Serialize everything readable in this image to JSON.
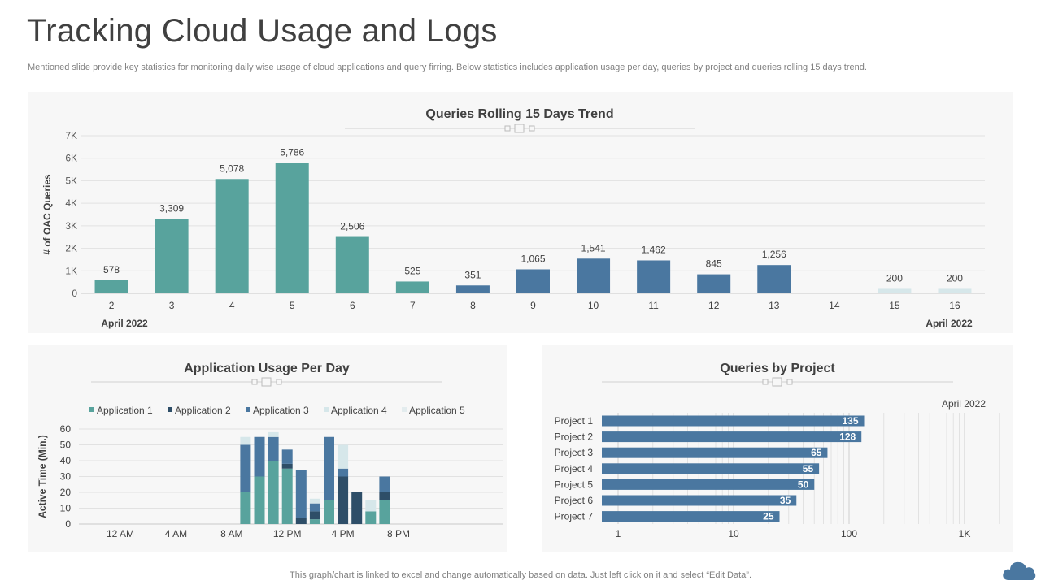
{
  "page": {
    "title": "Tracking Cloud Usage and Logs",
    "subtitle": "Mentioned slide provide key statistics for monitoring daily wise usage of cloud applications and query firring. Below statistics includes application usage per day, queries by project and queries rolling 15 days trend.",
    "footer": "This graph/chart is linked to excel and change automatically based on data. Just left click on it and select “Edit Data”."
  },
  "colors": {
    "teal": "#58a39d",
    "steel_blue": "#4a77a0",
    "dark_navy": "#2e4e68",
    "mid_blue": "#4a77a0",
    "pale": "#d6e7ea",
    "panel_bg": "#f7f7f7"
  },
  "chart_data": [
    {
      "type": "bar",
      "title": "Queries Rolling 15 Days Trend",
      "ylabel": "# of OAC Queries",
      "ylim": [
        0,
        7000
      ],
      "yticks": [
        "0",
        "1K",
        "2K",
        "3K",
        "4K",
        "5K",
        "6K",
        "7K"
      ],
      "categories": [
        "2",
        "3",
        "4",
        "5",
        "6",
        "7",
        "8",
        "9",
        "10",
        "11",
        "12",
        "13",
        "14",
        "15",
        "16"
      ],
      "values": [
        578,
        3309,
        5078,
        5786,
        2506,
        525,
        351,
        1065,
        1541,
        1462,
        845,
        1256,
        null,
        200,
        200
      ],
      "labels": [
        "578",
        "3,309",
        "5,078",
        "5,786",
        "2,506",
        "525",
        "351",
        "1,065",
        "1,541",
        "1,462",
        "845",
        "1,256",
        "",
        "200",
        "200"
      ],
      "bar_colors": [
        "#58a39d",
        "#58a39d",
        "#58a39d",
        "#58a39d",
        "#58a39d",
        "#58a39d",
        "#4a77a0",
        "#4a77a0",
        "#4a77a0",
        "#4a77a0",
        "#4a77a0",
        "#4a77a0",
        "#4a77a0",
        "#d6e7ea",
        "#d6e7ea"
      ],
      "date_left": "April 2022",
      "date_right": "April 2022",
      "grid": true
    },
    {
      "type": "bar",
      "stacked": true,
      "title": "Application Usage Per Day",
      "ylabel": "Active Time (Min.)",
      "ylim": [
        0,
        60
      ],
      "yticks": [
        "0",
        "10",
        "20",
        "30",
        "40",
        "50",
        "60"
      ],
      "xtick_labels": [
        "12 AM",
        "4 AM",
        "8 AM",
        "12 PM",
        "4 PM",
        "8 PM"
      ],
      "hours": [
        9,
        10,
        11,
        12,
        13,
        14,
        15,
        16,
        17,
        18,
        19
      ],
      "legend_position": "top",
      "series": [
        {
          "name": "Application 1",
          "color": "#58a39d",
          "values": [
            20,
            30,
            40,
            35,
            0,
            3,
            15,
            0,
            0,
            8,
            15
          ]
        },
        {
          "name": "Application 2",
          "color": "#2e4e68",
          "values": [
            0,
            0,
            0,
            3,
            4,
            5,
            0,
            30,
            20,
            0,
            5
          ]
        },
        {
          "name": "Application 3",
          "color": "#4a77a0",
          "values": [
            30,
            25,
            15,
            9,
            30,
            5,
            40,
            5,
            0,
            0,
            10
          ]
        },
        {
          "name": "Application 4",
          "color": "#d6e7ea",
          "values": [
            5,
            0,
            3,
            0,
            0,
            3,
            0,
            15,
            0,
            7,
            0
          ]
        },
        {
          "name": "Application 5",
          "color": "#e3ecee",
          "values": [
            0,
            0,
            0,
            0,
            0,
            0,
            0,
            0,
            0,
            0,
            0
          ]
        }
      ],
      "grid": true
    },
    {
      "type": "bar",
      "orientation": "horizontal",
      "title": "Queries by Project",
      "series_label": "April 2022",
      "x_scale": "log",
      "xlim": [
        1,
        2000
      ],
      "xticks": [
        1,
        10,
        100,
        1000
      ],
      "xtick_labels": [
        "1",
        "10",
        "100",
        "1K"
      ],
      "categories": [
        "Project 1",
        "Project 2",
        "Project 3",
        "Project 4",
        "Project 5",
        "Project 6",
        "Project 7"
      ],
      "values": [
        135,
        128,
        65,
        55,
        50,
        35,
        25
      ],
      "bar_color": "#4a77a0",
      "grid": true
    }
  ]
}
